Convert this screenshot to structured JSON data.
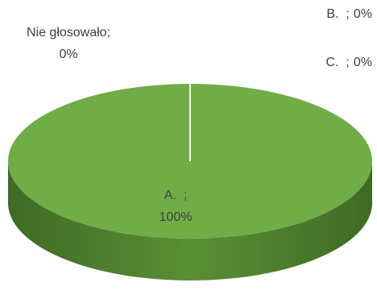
{
  "chart_data": {
    "type": "pie",
    "categories": [
      "A.  ",
      "B.  ",
      "C.  ",
      "Nie głosowało"
    ],
    "values": [
      100,
      0,
      0,
      0
    ],
    "value_labels": [
      "100%",
      "0%",
      "0%",
      "0%"
    ],
    "separator": ";",
    "color": "#70ad47"
  }
}
